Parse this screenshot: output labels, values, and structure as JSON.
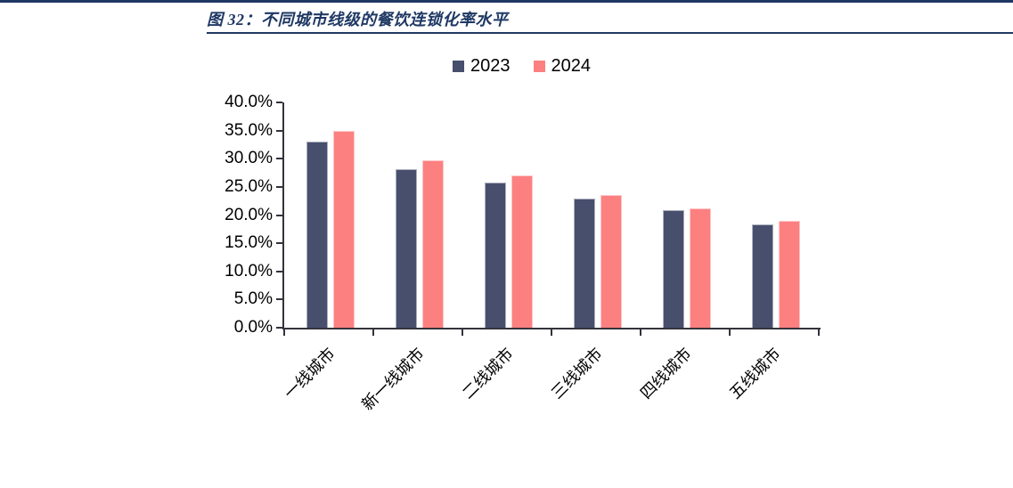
{
  "page": {
    "background": "#ffffff",
    "accent_color": "#1f3864"
  },
  "figure": {
    "title": "图 32：不同城市线级的餐饮连锁化率水平"
  },
  "chart_data": {
    "type": "bar",
    "title": "不同城市线级的餐饮连锁化率水平",
    "figure_label": "图 32",
    "categories": [
      "一线城市",
      "新一线城市",
      "二线城市",
      "三线城市",
      "四线城市",
      "五线城市"
    ],
    "series": [
      {
        "name": "2023",
        "color": "#474f6d",
        "values": [
          33.0,
          28.2,
          25.8,
          23.0,
          20.8,
          18.4
        ]
      },
      {
        "name": "2024",
        "color": "#fc8080",
        "values": [
          35.0,
          29.7,
          27.1,
          23.6,
          21.2,
          18.9
        ]
      }
    ],
    "ylim": [
      0,
      40
    ],
    "ytick_step": 5,
    "yticks": [
      "0.0%",
      "5.0%",
      "10.0%",
      "15.0%",
      "20.0%",
      "25.0%",
      "30.0%",
      "35.0%",
      "40.0%"
    ],
    "xlabel": "",
    "ylabel": "",
    "legend_position": "top-center",
    "grid": false,
    "axis_color": "#33333d",
    "x_label_rotation_deg": -45
  }
}
